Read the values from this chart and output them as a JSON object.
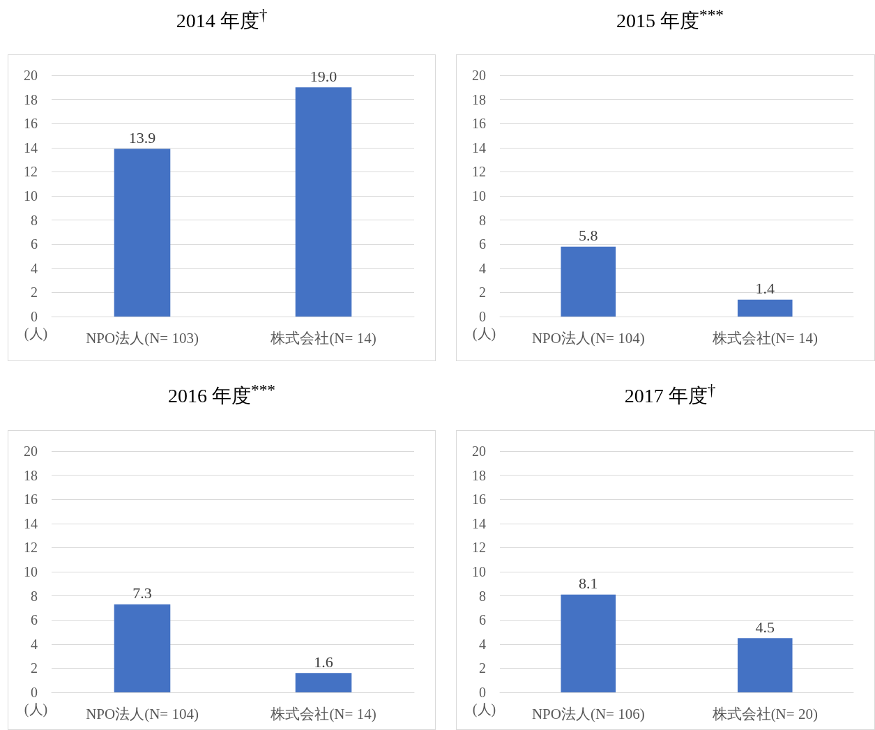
{
  "chart_data": [
    {
      "type": "bar",
      "title": "2014 年度$^{†}$",
      "ylabel": "(人)",
      "categories": [
        "NPO法人(N= 103)",
        "株式会社(N= 14)"
      ],
      "values": [
        13.9,
        19.0
      ],
      "value_labels": [
        "13.9",
        "19.0"
      ],
      "color": "#4472c4",
      "ylim": [
        0,
        20
      ],
      "yticks": [
        0,
        2,
        4,
        6,
        8,
        10,
        12,
        14,
        16,
        18,
        20
      ],
      "grid": "y"
    },
    {
      "type": "bar",
      "title": "2015 年度$^{***}$",
      "ylabel": "(人)",
      "categories": [
        "NPO法人(N= 104)",
        "株式会社(N= 14)"
      ],
      "values": [
        5.8,
        1.4
      ],
      "value_labels": [
        "5.8",
        "1.4"
      ],
      "color": "#4472c4",
      "ylim": [
        0,
        20
      ],
      "yticks": [
        0,
        2,
        4,
        6,
        8,
        10,
        12,
        14,
        16,
        18,
        20
      ],
      "grid": "y"
    },
    {
      "type": "bar",
      "title": "2016 年度$^{***}$",
      "ylabel": "(人)",
      "categories": [
        "NPO法人(N= 104)",
        "株式会社(N= 14)"
      ],
      "values": [
        7.3,
        1.6
      ],
      "value_labels": [
        "7.3",
        "1.6"
      ],
      "color": "#4472c4",
      "ylim": [
        0,
        20
      ],
      "yticks": [
        0,
        2,
        4,
        6,
        8,
        10,
        12,
        14,
        16,
        18,
        20
      ],
      "grid": "y"
    },
    {
      "type": "bar",
      "title": "2017 年度$^{†}$",
      "ylabel": "(人)",
      "categories": [
        "NPO法人(N= 106)",
        "株式会社(N= 20)"
      ],
      "values": [
        8.1,
        4.5
      ],
      "value_labels": [
        "8.1",
        "4.5"
      ],
      "color": "#4472c4",
      "ylim": [
        0,
        20
      ],
      "yticks": [
        0,
        2,
        4,
        6,
        8,
        10,
        12,
        14,
        16,
        18,
        20
      ],
      "grid": "y"
    }
  ]
}
